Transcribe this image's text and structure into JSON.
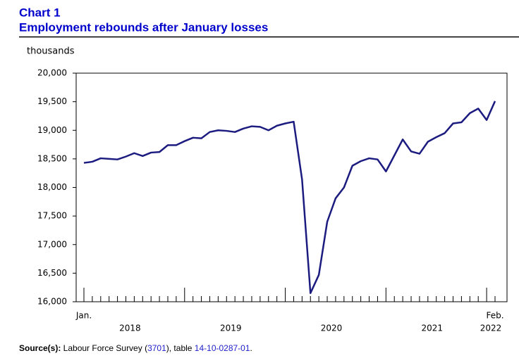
{
  "chart_data": {
    "type": "line",
    "title": "Chart 1",
    "subtitle": "Employment rebounds after January losses",
    "y_label": "thousands",
    "categories": [
      "Jan.",
      null,
      null,
      null,
      null,
      null,
      null,
      null,
      null,
      null,
      null,
      null,
      null,
      null,
      null,
      null,
      null,
      null,
      null,
      null,
      null,
      null,
      null,
      null,
      null,
      null,
      null,
      null,
      null,
      null,
      null,
      null,
      null,
      null,
      null,
      null,
      null,
      null,
      null,
      null,
      null,
      null,
      null,
      null,
      null,
      null,
      null,
      null,
      null,
      "Feb."
    ],
    "years": [
      "2018",
      "2019",
      "2020",
      "2021",
      "2022"
    ],
    "series": [
      {
        "name": "Employment",
        "color": "#1c1c80",
        "values": [
          18430,
          18450,
          18510,
          18500,
          18490,
          18540,
          18600,
          18550,
          18610,
          18620,
          18740,
          18740,
          18810,
          18870,
          18860,
          18970,
          19000,
          18990,
          18970,
          19030,
          19070,
          19060,
          19000,
          19080,
          19120,
          19150,
          18140,
          16150,
          16470,
          17400,
          17810,
          18000,
          18380,
          18460,
          18510,
          18490,
          18280,
          18560,
          18840,
          18630,
          18590,
          18800,
          18880,
          18950,
          19120,
          19140,
          19300,
          19380,
          19180,
          19510
        ]
      }
    ],
    "ylim": [
      16000,
      20000
    ],
    "yticks": [
      {
        "value": 16000,
        "label": "16,000"
      },
      {
        "value": 16500,
        "label": "16,500"
      },
      {
        "value": 17000,
        "label": "17,000"
      },
      {
        "value": 17500,
        "label": "17,500"
      },
      {
        "value": 18000,
        "label": "18,000"
      },
      {
        "value": 18500,
        "label": "18,500"
      },
      {
        "value": 19000,
        "label": "19,000"
      },
      {
        "value": 19500,
        "label": "19,500"
      },
      {
        "value": 20000,
        "label": "20,000"
      }
    ],
    "source": {
      "label": "Source(s):",
      "text": " Labour Force Survey (",
      "survey_id": "3701",
      "mid": "), table ",
      "table_id": "14-10-0287-01",
      "end": "."
    }
  }
}
